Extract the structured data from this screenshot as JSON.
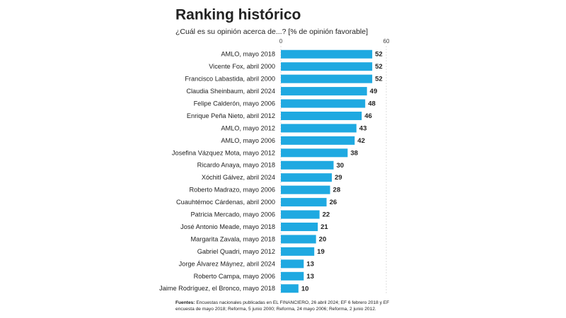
{
  "chart_data": {
    "type": "hbar",
    "title": "Ranking histórico",
    "subtitle": "¿Cuál es su opinión acerca de...? [% de opinión favorable]",
    "categories": [
      "AMLO, mayo 2018",
      "Vicente Fox, abril 2000",
      "Francisco Labastida, abril 2000",
      "Claudia Sheinbaum, abril 2024",
      "Felipe Calderón, mayo 2006",
      "Enrique Peña Nieto, abril 2012",
      "AMLO, mayo 2012",
      "AMLO, mayo 2006",
      "Josefina Vázquez Mota, mayo 2012",
      "Ricardo Anaya, mayo 2018",
      "Xóchitl Gálvez, abril 2024",
      "Roberto Madrazo, mayo 2006",
      "Cuauhtémoc Cárdenas, abril 2000",
      "Patricia Mercado, mayo 2006",
      "José Antonio Meade, mayo 2018",
      "Margarita Zavala, mayo 2018",
      "Gabriel Quadri, mayo 2012",
      "Jorge Álvarez Máynez, abril 2024",
      "Roberto Campa, mayo 2006",
      "Jaime Rodríguez, el Bronco, mayo 2018"
    ],
    "values": [
      52,
      52,
      52,
      49,
      48,
      46,
      43,
      42,
      38,
      30,
      29,
      28,
      26,
      22,
      21,
      20,
      19,
      13,
      13,
      10
    ],
    "color": "#1fa9e1",
    "xlim": [
      0,
      60
    ],
    "xticks": [
      0,
      60
    ],
    "grid": true,
    "source_label": "Fuentes:",
    "source": "Encuestas nacionales publicadas en EL FINANCIERO, 26 abril 2024; EF 6 febrero 2018 y EF encuesta de mayo 2018; Reforma, 5 junio 2000; Reforma, 24 mayo 2006; Reforma, 2 junio 2012."
  }
}
